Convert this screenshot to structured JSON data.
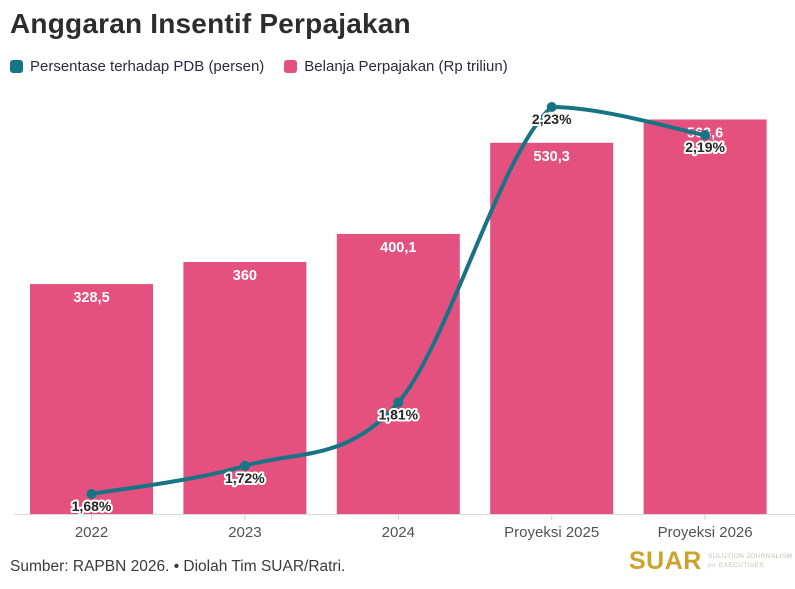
{
  "title": "Anggaran Insentif Perpajakan",
  "legend": {
    "items": [
      {
        "label": "Persentase terhadap PDB (persen)",
        "color": "#177485"
      },
      {
        "label": "Belanja Perpajakan (Rp triliun)",
        "color": "#e4517e"
      }
    ]
  },
  "chart_data": {
    "type": "combo-bar-line",
    "categories": [
      "2022",
      "2023",
      "2024",
      "Proyeksi 2025",
      "Proyeksi 2026"
    ],
    "series": [
      {
        "name": "Belanja Perpajakan (Rp triliun)",
        "type": "bar",
        "color": "#e4517e",
        "values": [
          328.5,
          360,
          400.1,
          530.3,
          563.6
        ],
        "value_labels": [
          "328,5",
          "360",
          "400,1",
          "530,3",
          "563,6"
        ]
      },
      {
        "name": "Persentase terhadap PDB (persen)",
        "type": "line",
        "color": "#177485",
        "values": [
          1.68,
          1.72,
          1.81,
          2.23,
          2.19
        ],
        "value_labels": [
          "1,68%",
          "1,72%",
          "1,81%",
          "2,23%",
          "2,19%"
        ]
      }
    ],
    "bar_ylim": [
      0,
      600
    ],
    "line_ylim": [
      1.6,
      2.35
    ],
    "grid": false,
    "legend_position": "top-left",
    "axis_color": "#d9d9d9",
    "tick_label_color": "#525252",
    "bar_label_color": "#ffffff",
    "line_label_color": "#262626"
  },
  "footer": {
    "source": "Sumber: RAPBN 2026. • Diolah Tim SUAR/Ratri."
  },
  "logo": {
    "name": "SUAR",
    "color": "#cba32d",
    "tagline_line1": "Solution Journalism",
    "tagline_for": "for",
    "tagline_line2": "Executives"
  }
}
